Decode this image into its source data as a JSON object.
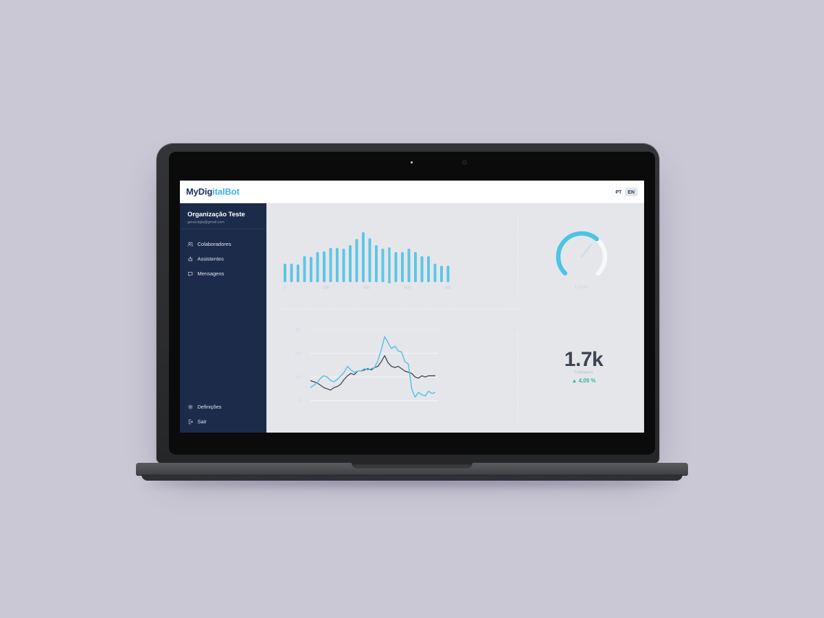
{
  "theme": {
    "background": "#cac8d5",
    "sidebar_bg": "#1d2b4b",
    "main_bg": "#e5e6ea",
    "accent_blue": "#4cc4e4",
    "accent_navy": "#20305a",
    "delta_green": "#38b2a7"
  },
  "header": {
    "logo_primary": "MyDig",
    "logo_secondary": "italBot",
    "lang": [
      {
        "label": "PT",
        "active": false
      },
      {
        "label": "EN",
        "active": true
      }
    ]
  },
  "sidebar": {
    "org_name": "Organização Teste",
    "org_email": "geral.olgls@gmail.com",
    "items": [
      {
        "label": "Colaboradores",
        "icon": "users-icon"
      },
      {
        "label": "Assistentes",
        "icon": "robot-icon"
      },
      {
        "label": "Mensagens",
        "icon": "chat-icon"
      }
    ],
    "footer_items": [
      {
        "label": "Definições",
        "icon": "gear-icon"
      },
      {
        "label": "Sair",
        "icon": "logout-icon"
      }
    ]
  },
  "chart_data": [
    {
      "type": "bar",
      "name": "activity-histogram",
      "bar_color": "#5cc6e6",
      "x_tick_labels": [
        "0",
        "200",
        "400",
        "600",
        "800"
      ],
      "values": [
        27,
        27,
        26,
        38,
        37,
        44,
        45,
        50,
        50,
        49,
        54,
        63,
        73,
        64,
        54,
        49,
        49,
        44,
        44,
        49,
        44,
        38,
        38,
        27,
        24,
        24
      ],
      "dashed_bar_index": 16,
      "ylabel": "",
      "xlabel": "",
      "grid": false
    },
    {
      "type": "line",
      "name": "followers-trend",
      "yticks": [
        0,
        10,
        20,
        30
      ],
      "ylim": [
        0,
        30
      ],
      "grid": true,
      "series": [
        {
          "name": "series-blue",
          "color": "#55c3e4",
          "values": [
            5.5,
            6.5,
            7.5,
            9.5,
            10.5,
            10,
            8.5,
            8,
            9,
            10.5,
            12,
            14.5,
            13,
            12,
            12.5,
            12.5,
            13.5,
            13,
            13.5,
            14,
            17,
            21.5,
            27,
            24.5,
            22,
            23,
            21,
            20.5,
            16.5,
            15.5,
            5,
            1.5,
            3.5,
            2.5,
            2,
            4,
            3,
            3.5
          ]
        },
        {
          "name": "series-dark",
          "color": "#3b4254",
          "values": [
            8.5,
            8,
            7.5,
            6.5,
            5.5,
            5,
            4.5,
            5.5,
            6,
            7,
            9,
            10.5,
            11.5,
            11,
            12.5,
            12.5,
            13,
            13.5,
            13,
            14,
            14.5,
            16.5,
            19,
            16,
            14.5,
            14,
            14.5,
            13.5,
            12.5,
            12,
            11.5,
            10,
            9.5,
            10.5,
            10,
            10.5,
            10.5,
            10.5
          ]
        }
      ]
    },
    {
      "type": "gauge",
      "name": "level-gauge",
      "label": "Level",
      "percent": 65,
      "color": "#4cc4e4",
      "track_color": "#f6f8fa",
      "needle_color": "#cfe0ec"
    }
  ],
  "stats": {
    "value": "1.7k",
    "label": "Followers",
    "delta": "▲ 4,09 %"
  }
}
